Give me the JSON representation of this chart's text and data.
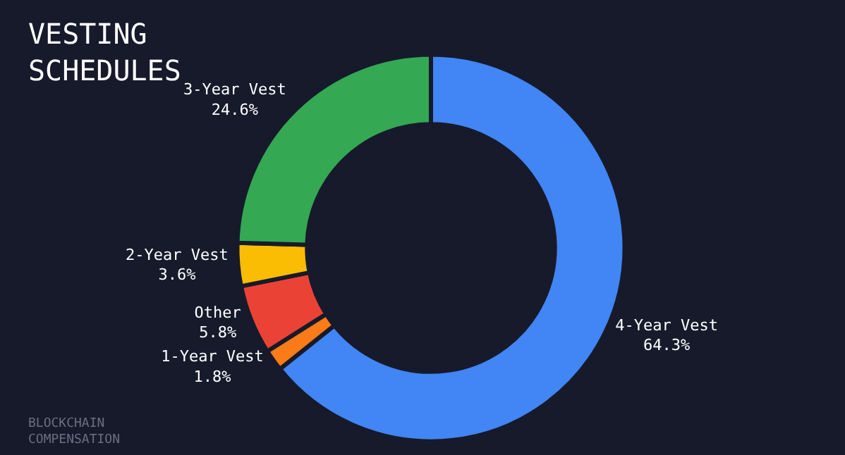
{
  "chart_data": {
    "type": "donut",
    "title": "VESTING\nSCHEDULES",
    "categories": [
      "4-Year Vest",
      "1-Year Vest",
      "Other",
      "2-Year Vest",
      "3-Year Vest"
    ],
    "values": [
      64.3,
      1.8,
      5.8,
      3.6,
      24.6
    ],
    "value_labels": [
      "64.3%",
      "1.8%",
      "5.8%",
      "3.6%",
      "24.6%"
    ],
    "colors": [
      "#4285f4",
      "#fa7b17",
      "#ea4335",
      "#fbbc04",
      "#34a853"
    ],
    "annotations": [
      "BLOCKCHAIN\nCOMPENSATION"
    ],
    "legend": false
  }
}
